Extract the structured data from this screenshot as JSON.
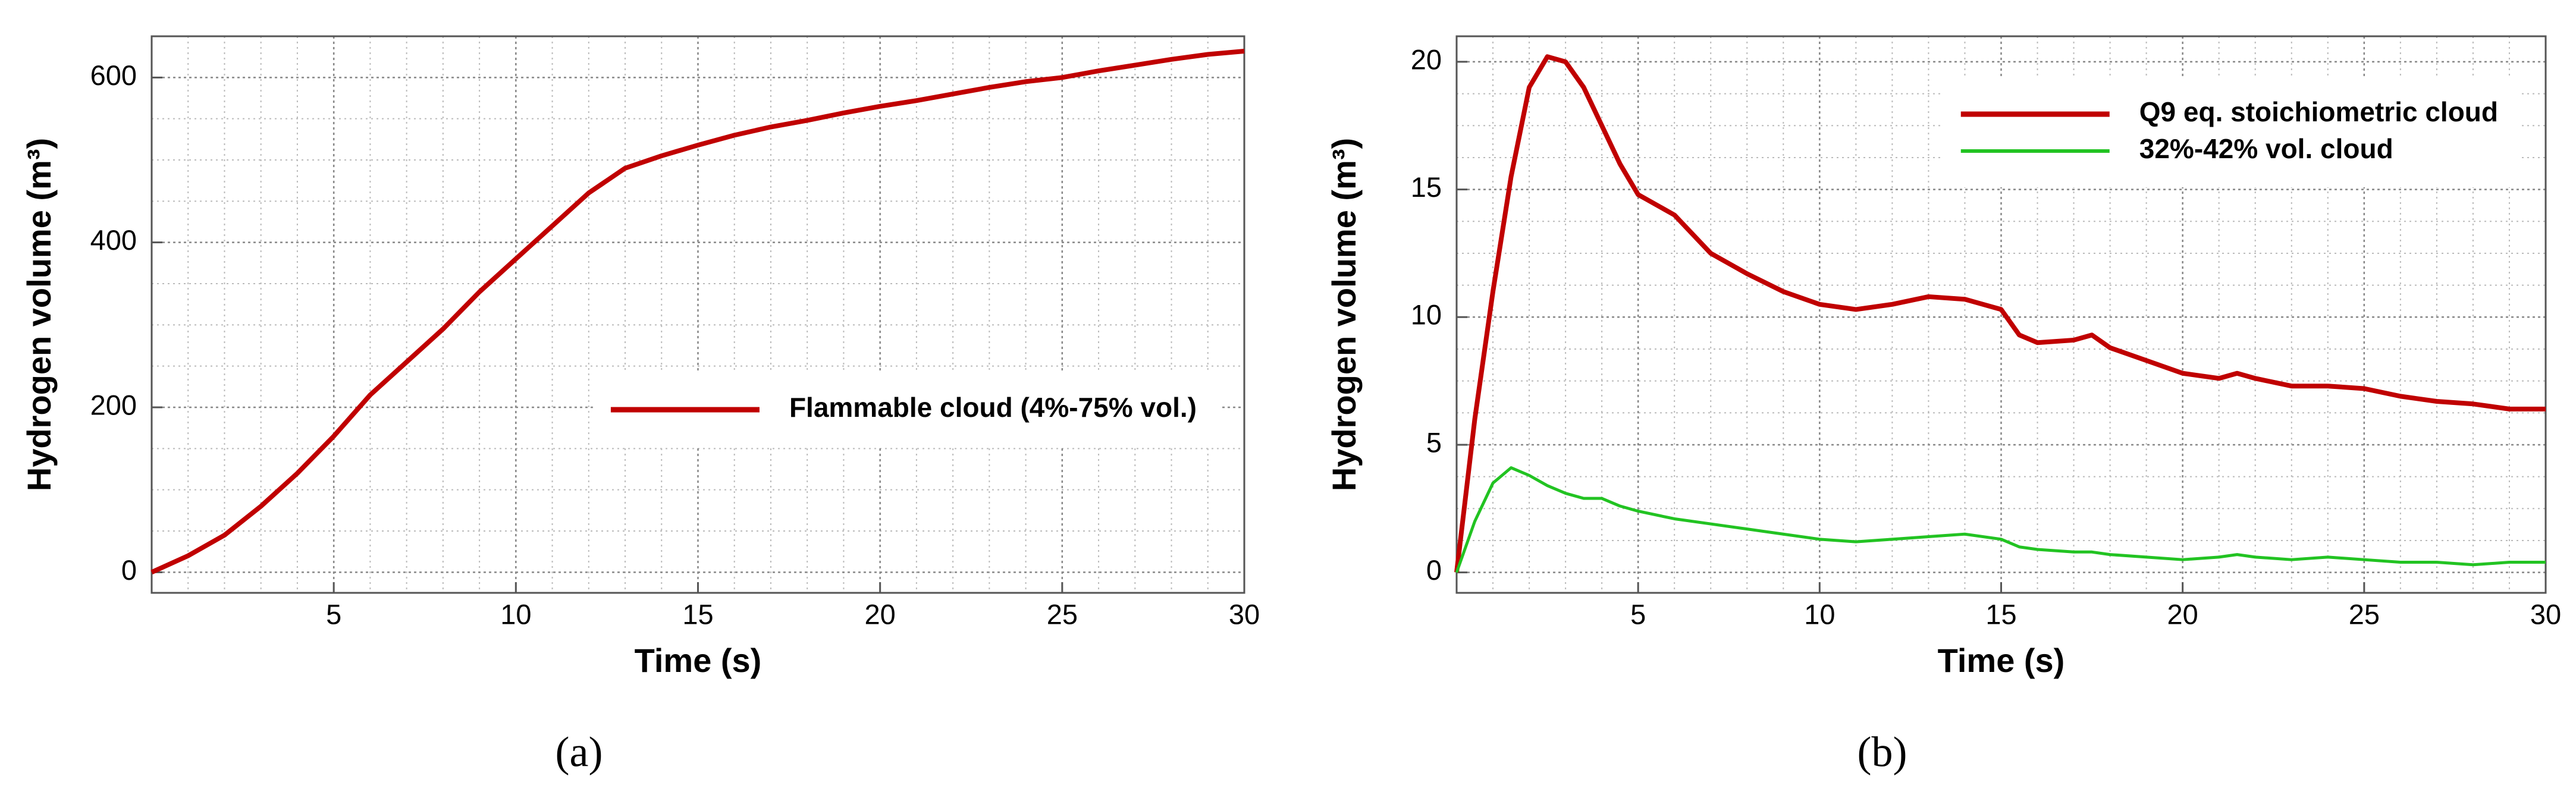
{
  "chart_data": [
    {
      "type": "line",
      "caption": "(a)",
      "xlabel": "Time (s)",
      "ylabel": "Hydrogen volume (m³)",
      "xlim": [
        0,
        30
      ],
      "xticks": [
        5,
        10,
        15,
        20,
        25,
        30
      ],
      "ylim": [
        -25,
        650
      ],
      "yticks": [
        0,
        200,
        400,
        600
      ],
      "grid": true,
      "legend": "center right",
      "x": [
        0,
        1,
        2,
        3,
        4,
        5,
        6,
        7,
        8,
        9,
        10,
        11,
        12,
        13,
        14,
        15,
        16,
        17,
        18,
        19,
        20,
        21,
        22,
        23,
        24,
        25,
        26,
        27,
        28,
        29,
        30
      ],
      "series": [
        {
          "name": "Flammable cloud (4%-75% vol.)",
          "color": "#c00000",
          "values": [
            0,
            20,
            45,
            80,
            120,
            165,
            215,
            255,
            295,
            340,
            380,
            420,
            460,
            490,
            505,
            518,
            530,
            540,
            548,
            557,
            565,
            572,
            580,
            588,
            595,
            600,
            608,
            615,
            622,
            628,
            632
          ]
        }
      ]
    },
    {
      "type": "line",
      "caption": "(b)",
      "xlabel": "Time (s)",
      "ylabel": "Hydrogen volume (m³)",
      "xlim": [
        0,
        30
      ],
      "xticks": [
        5,
        10,
        15,
        20,
        25,
        30
      ],
      "ylim": [
        -0.8,
        21
      ],
      "yticks": [
        0,
        5,
        10,
        15,
        20
      ],
      "grid": true,
      "legend": "upper right",
      "x": [
        0,
        0.5,
        1,
        1.5,
        2,
        2.5,
        3,
        3.5,
        4,
        4.5,
        5,
        6,
        7,
        8,
        9,
        10,
        11,
        12,
        13,
        14,
        15,
        15.5,
        16,
        17,
        17.5,
        18,
        19,
        20,
        21,
        21.5,
        22,
        23,
        24,
        25,
        26,
        27,
        28,
        29,
        30
      ],
      "series": [
        {
          "name": "Q9 eq. stoichiometric cloud",
          "color": "#c00000",
          "values": [
            0,
            6,
            11,
            15.5,
            19,
            20.2,
            20,
            19,
            17.5,
            16,
            14.8,
            14,
            12.5,
            11.7,
            11,
            10.5,
            10.3,
            10.5,
            10.8,
            10.7,
            10.3,
            9.3,
            9.0,
            9.1,
            9.3,
            8.8,
            8.3,
            7.8,
            7.6,
            7.8,
            7.6,
            7.3,
            7.3,
            7.2,
            6.9,
            6.7,
            6.6,
            6.4,
            6.4
          ]
        },
        {
          "name": "32%-42% vol. cloud",
          "color": "#22c322",
          "values": [
            0,
            2,
            3.5,
            4.1,
            3.8,
            3.4,
            3.1,
            2.9,
            2.9,
            2.6,
            2.4,
            2.1,
            1.9,
            1.7,
            1.5,
            1.3,
            1.2,
            1.3,
            1.4,
            1.5,
            1.3,
            1.0,
            0.9,
            0.8,
            0.8,
            0.7,
            0.6,
            0.5,
            0.6,
            0.7,
            0.6,
            0.5,
            0.6,
            0.5,
            0.4,
            0.4,
            0.3,
            0.4,
            0.4
          ]
        }
      ]
    }
  ]
}
